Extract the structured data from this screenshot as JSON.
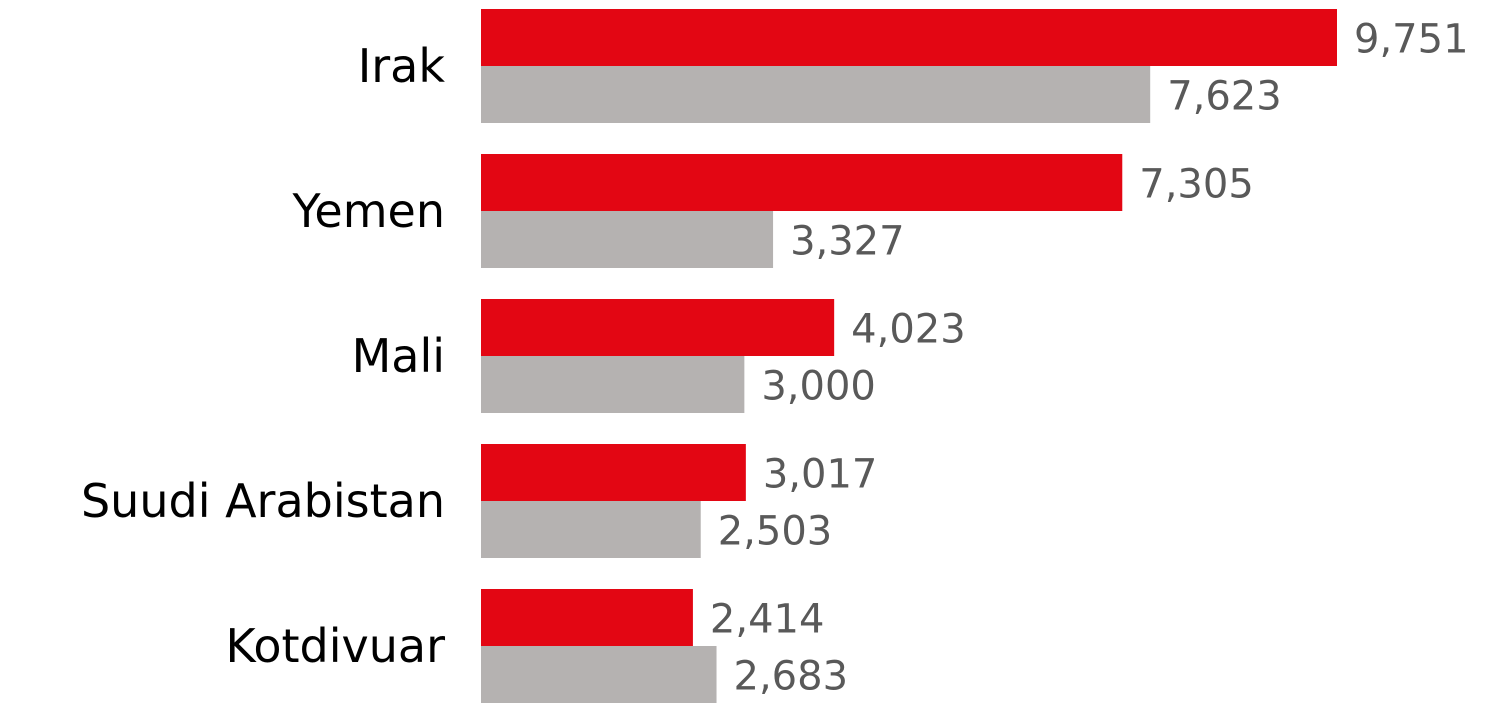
{
  "chart_data": {
    "type": "bar",
    "orientation": "horizontal",
    "categories": [
      "Irak",
      "Yemen",
      "Mali",
      "Suudi Arabistan",
      "Kotdivuar"
    ],
    "series": [
      {
        "color": "#e30613",
        "values": [
          9751,
          7305,
          4023,
          3017,
          2414
        ],
        "value_labels": [
          "9,751",
          "7,305",
          "4,023",
          "3,017",
          "2,414"
        ]
      },
      {
        "color": "#b5b2b1",
        "values": [
          7623,
          3327,
          3000,
          2503,
          2683
        ],
        "value_labels": [
          "7,623",
          "3,327",
          "3,000",
          "2,503",
          "2,683"
        ]
      }
    ]
  }
}
